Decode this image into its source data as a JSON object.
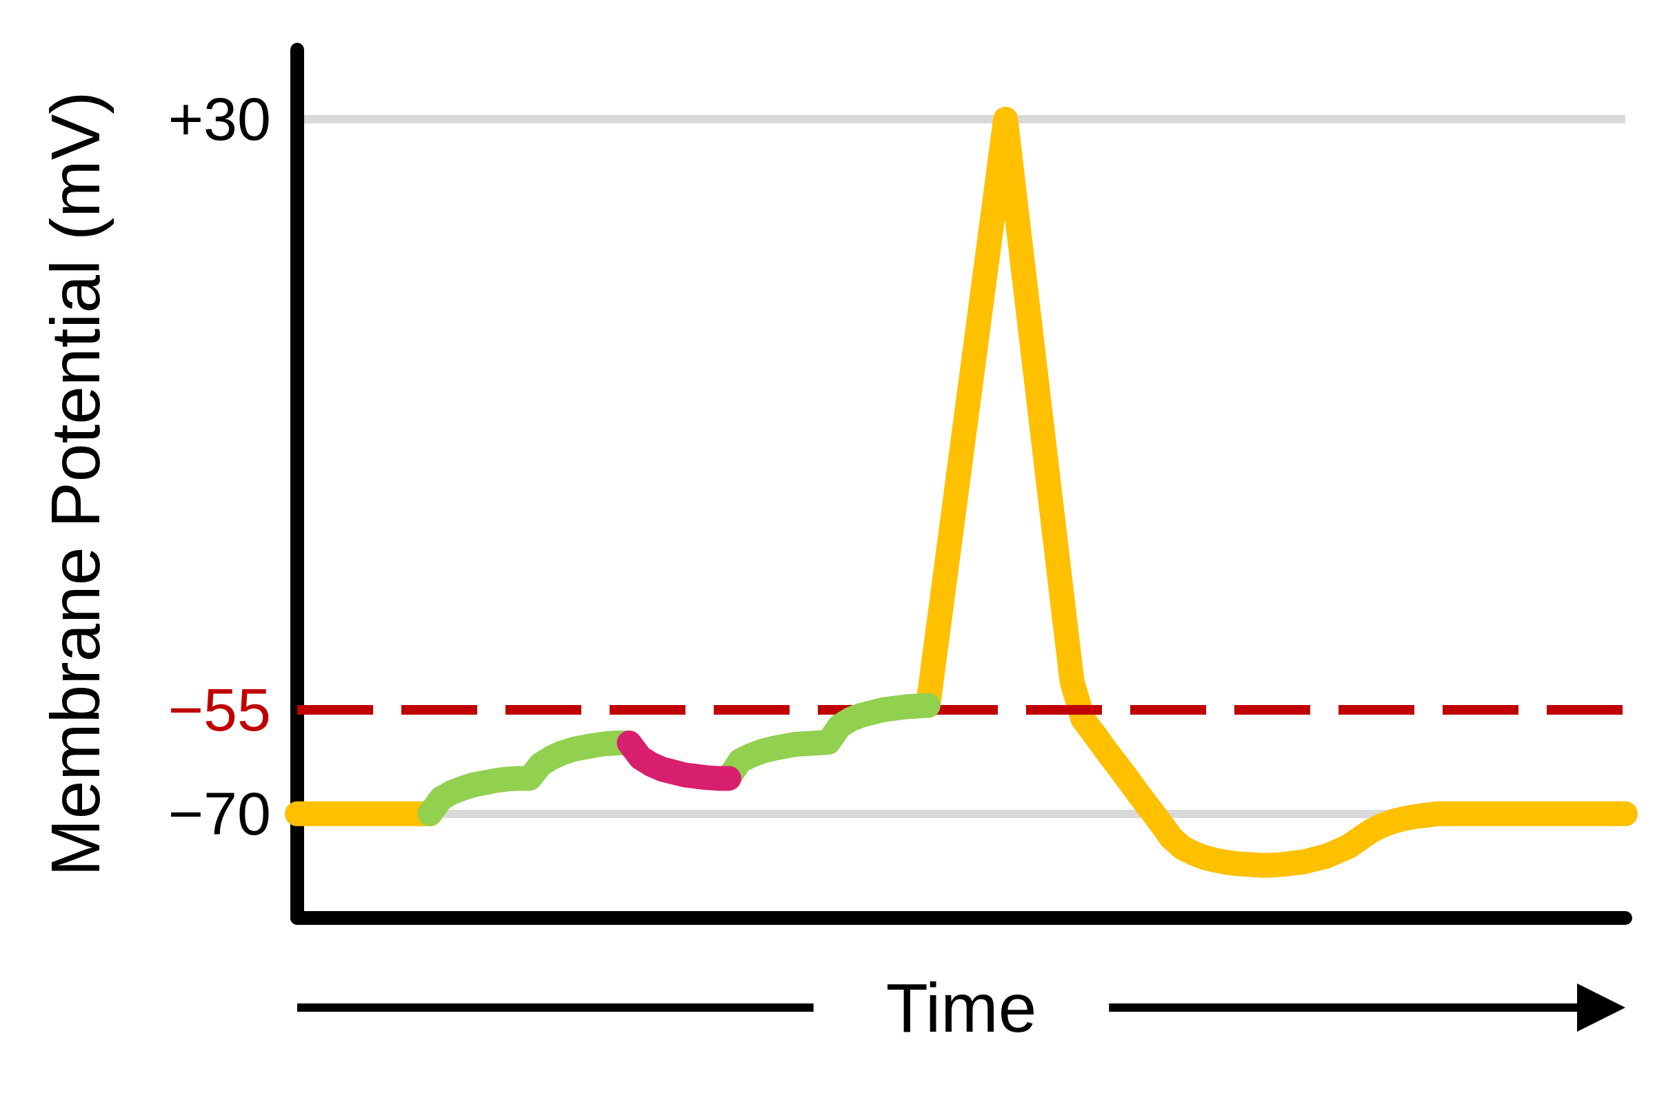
{
  "chart_data": {
    "type": "line",
    "xlabel": "Time",
    "ylabel": "Membrane Potential (mV)",
    "categories": [
      null,
      null,
      null,
      null,
      null,
      null,
      null,
      null,
      null,
      null,
      null,
      null,
      null,
      null,
      null,
      null,
      null,
      null,
      null,
      null,
      null,
      null,
      null,
      null,
      null,
      null,
      null,
      null,
      null,
      null,
      null,
      null,
      null,
      null,
      null,
      null,
      null,
      null,
      null,
      null,
      null,
      null,
      null,
      null,
      null,
      null,
      null,
      null,
      null,
      null,
      null,
      null,
      null,
      null,
      null,
      null,
      null,
      null,
      null,
      null,
      null,
      null,
      null,
      null,
      null,
      null,
      null,
      null,
      null,
      null,
      null,
      null,
      null,
      null,
      null,
      null,
      null,
      null,
      null,
      null,
      null,
      null,
      null,
      null,
      null,
      null,
      null,
      null,
      null,
      null,
      null,
      null,
      null,
      null,
      null,
      null,
      null,
      null,
      null,
      null,
      null,
      null,
      null,
      null,
      null,
      null,
      null,
      null,
      null,
      null,
      null,
      null,
      null,
      null,
      null,
      null,
      null,
      null,
      null,
      null,
      null
    ],
    "series": [
      {
        "color": "#ffc000",
        "values": [
          -70,
          -70,
          -70,
          -70,
          -70,
          -70,
          -70,
          -70,
          -70,
          -70,
          -70,
          -70,
          -70,
          null,
          null,
          null,
          null,
          null,
          null,
          null,
          null,
          null,
          null,
          null,
          null,
          null,
          null,
          null,
          null,
          null,
          null,
          null,
          null,
          null,
          null,
          null,
          null,
          null,
          null,
          null,
          null,
          null,
          null,
          null,
          null,
          null,
          null,
          null,
          null,
          null,
          null,
          null,
          null,
          null,
          null,
          null,
          null,
          null,
          null,
          null,
          null,
          null,
          null,
          null,
          null,
          null,
          null,
          null,
          null,
          null,
          null,
          null,
          null,
          null,
          null,
          null,
          null,
          null,
          null,
          null,
          null,
          null,
          null,
          null,
          null,
          null,
          null,
          null,
          null,
          null,
          null,
          null,
          null,
          null,
          null,
          null,
          null,
          null,
          null,
          null,
          null,
          null,
          null,
          null,
          null,
          null,
          null,
          null,
          null,
          null,
          null,
          null,
          null,
          null,
          null,
          null,
          null,
          null,
          null,
          null,
          null
        ]
      },
      {
        "color": "#ffc000",
        "values": [
          null,
          null,
          null,
          null,
          null,
          null,
          null,
          null,
          null,
          null,
          null,
          null,
          null,
          null,
          null,
          null,
          null,
          null,
          null,
          null,
          null,
          null,
          null,
          null,
          null,
          null,
          null,
          null,
          null,
          null,
          null,
          null,
          null,
          null,
          null,
          null,
          null,
          null,
          null,
          null,
          null,
          null,
          null,
          null,
          null,
          null,
          null,
          null,
          null,
          null,
          null,
          null,
          null,
          null,
          null,
          null,
          null,
          -54.4,
          -42.3,
          -30.3,
          -18.2,
          -6.2,
          5.9,
          17.9,
          30,
          16.5,
          3.0,
          -10.5,
          -24.0,
          -37.5,
          -50.9,
          -56.4,
          -58.5,
          -60.7,
          -62.8,
          -64.9,
          -67.1,
          -69.2,
          -71.3,
          -73.5,
          -74.9,
          -75.7,
          -76.3,
          -76.7,
          -77.0,
          -77.2,
          -77.3,
          -77.4,
          -77.4,
          -77.3,
          -77.1,
          -76.9,
          -76.5,
          -76.1,
          -75.4,
          -74.7,
          -73.6,
          -72.5,
          -71.7,
          -71.1,
          -70.7,
          -70.4,
          -70.2,
          -70,
          -70,
          -70,
          -70,
          -70,
          -70,
          -70,
          -70,
          -70,
          -70,
          -70,
          -70,
          -70,
          -70,
          -70,
          -70,
          -70,
          -70
        ]
      },
      {
        "color": "#92d050",
        "values": [
          null,
          null,
          null,
          null,
          null,
          null,
          null,
          null,
          null,
          null,
          null,
          null,
          -70,
          -67.8,
          -66.9,
          -66.3,
          -65.8,
          -65.5,
          -65.2,
          -65.0,
          -64.9,
          -64.9,
          -62.9,
          -61.9,
          -61.2,
          -60.7,
          -60.4,
          -60.1,
          -59.9,
          -59.8,
          -59.8,
          null,
          null,
          null,
          null,
          null,
          null,
          null,
          null,
          null,
          null,
          null,
          null,
          null,
          null,
          null,
          null,
          null,
          null,
          null,
          null,
          null,
          null,
          null,
          null,
          null,
          null,
          null,
          null,
          null,
          null,
          null,
          null,
          null,
          null,
          null,
          null,
          null,
          null,
          null,
          null,
          null,
          null,
          null,
          null,
          null,
          null,
          null,
          null,
          null,
          null,
          null,
          null,
          null,
          null,
          null,
          null,
          null,
          null,
          null,
          null,
          null,
          null,
          null,
          null,
          null,
          null,
          null,
          null,
          null,
          null,
          null,
          null,
          null,
          null,
          null,
          null,
          null,
          null,
          null,
          null,
          null,
          null,
          null,
          null,
          null,
          null,
          null,
          null,
          null,
          null
        ]
      },
      {
        "color": "#92d050",
        "values": [
          null,
          null,
          null,
          null,
          null,
          null,
          null,
          null,
          null,
          null,
          null,
          null,
          null,
          null,
          null,
          null,
          null,
          null,
          null,
          null,
          null,
          null,
          null,
          null,
          null,
          null,
          null,
          null,
          null,
          null,
          null,
          null,
          null,
          null,
          null,
          null,
          null,
          null,
          null,
          -64.8,
          -62.4,
          -61.6,
          -61.0,
          -60.6,
          -60.3,
          -60.0,
          -59.9,
          -59.8,
          -59.7,
          -57.4,
          -56.4,
          -55.8,
          -55.4,
          -55.0,
          -54.8,
          -54.6,
          -54.5,
          -54.4,
          null,
          null,
          null,
          null,
          null,
          null,
          null,
          null,
          null,
          null,
          null,
          null,
          null,
          null,
          null,
          null,
          null,
          null,
          null,
          null,
          null,
          null,
          null,
          null,
          null,
          null,
          null,
          null,
          null,
          null,
          null,
          null,
          null,
          null,
          null,
          null,
          null,
          null,
          null,
          null,
          null,
          null,
          null,
          null,
          null,
          null,
          null,
          null,
          null,
          null,
          null,
          null,
          null,
          null,
          null,
          null,
          null,
          null,
          null,
          null,
          null,
          null,
          null
        ]
      },
      {
        "color": "#d81f6e",
        "values": [
          null,
          null,
          null,
          null,
          null,
          null,
          null,
          null,
          null,
          null,
          null,
          null,
          null,
          null,
          null,
          null,
          null,
          null,
          null,
          null,
          null,
          null,
          null,
          null,
          null,
          null,
          null,
          null,
          null,
          null,
          -59.8,
          -61.9,
          -62.9,
          -63.6,
          -64.0,
          -64.4,
          -64.6,
          -64.8,
          -64.9,
          -64.9,
          null,
          null,
          null,
          null,
          null,
          null,
          null,
          null,
          null,
          null,
          null,
          null,
          null,
          null,
          null,
          null,
          null,
          null,
          null,
          null,
          null,
          null,
          null,
          null,
          null,
          null,
          null,
          null,
          null,
          null,
          null,
          null,
          null,
          null,
          null,
          null,
          null,
          null,
          null,
          null,
          null,
          null,
          null,
          null,
          null,
          null,
          null,
          null,
          null,
          null,
          null,
          null,
          null,
          null,
          null,
          null,
          null,
          null,
          null,
          null,
          null,
          null,
          null,
          null,
          null,
          null,
          null,
          null,
          null,
          null,
          null,
          null,
          null,
          null,
          null,
          null,
          null,
          null,
          null,
          null,
          null
        ]
      }
    ],
    "ylim": [
      -85,
      40
    ],
    "yticks": [
      {
        "value": -70,
        "label": "−70"
      },
      {
        "value": 30,
        "label": "+30"
      }
    ],
    "grid": "y",
    "tick_labels": "y",
    "ref_lines": [
      {
        "axis": "y",
        "value": -55,
        "label": "−55",
        "color": "#c00000",
        "line_style": "dashed"
      }
    ]
  }
}
